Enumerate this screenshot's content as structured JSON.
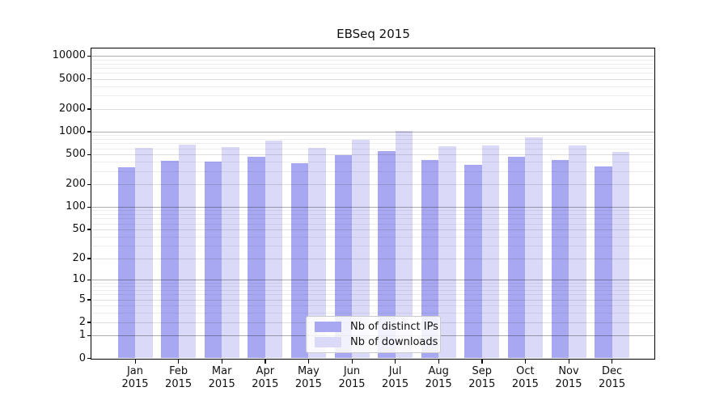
{
  "chart_data": {
    "type": "bar",
    "title": "EBSeq 2015",
    "categories": [
      {
        "month": "Jan",
        "year": "2015"
      },
      {
        "month": "Feb",
        "year": "2015"
      },
      {
        "month": "Mar",
        "year": "2015"
      },
      {
        "month": "Apr",
        "year": "2015"
      },
      {
        "month": "May",
        "year": "2015"
      },
      {
        "month": "Jun",
        "year": "2015"
      },
      {
        "month": "Jul",
        "year": "2015"
      },
      {
        "month": "Aug",
        "year": "2015"
      },
      {
        "month": "Sep",
        "year": "2015"
      },
      {
        "month": "Oct",
        "year": "2015"
      },
      {
        "month": "Nov",
        "year": "2015"
      },
      {
        "month": "Dec",
        "year": "2015"
      }
    ],
    "series": [
      {
        "name": "Nb of distinct IPs",
        "color": "#a8a8f2",
        "values": [
          337,
          411,
          401,
          465,
          385,
          489,
          552,
          422,
          363,
          470,
          422,
          350
        ]
      },
      {
        "name": "Nb of downloads",
        "color": "#dadaf8",
        "values": [
          610,
          673,
          625,
          761,
          610,
          780,
          1030,
          640,
          657,
          840,
          657,
          540
        ]
      }
    ],
    "yscale": "log1p",
    "yticks": [
      0,
      1,
      2,
      5,
      10,
      20,
      50,
      100,
      200,
      500,
      1000,
      2000,
      5000,
      10000
    ],
    "power_of_ten_gridlines": [
      1,
      10,
      100,
      1000,
      10000
    ],
    "minor_gridline_decades": [
      1,
      10,
      100,
      1000
    ],
    "minor_gridline_steps": [
      3,
      4,
      6,
      7,
      8,
      9
    ],
    "ylim": [
      0,
      12600
    ],
    "grid": true,
    "legend_position": "lower center"
  }
}
